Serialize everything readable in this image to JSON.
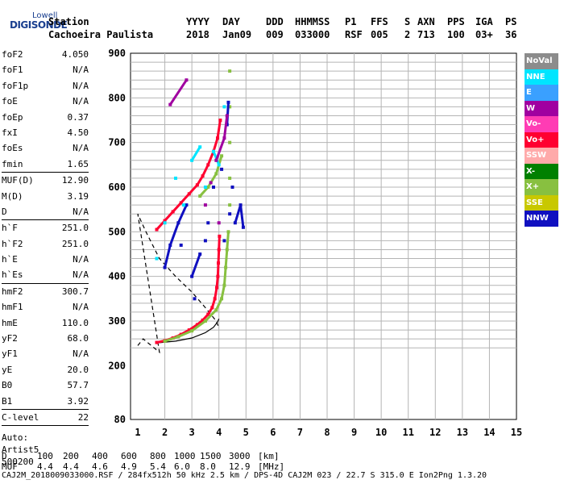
{
  "logo": {
    "top": "Lowell",
    "main": "DIGISONDE"
  },
  "header": {
    "line1": [
      "Station",
      "YYYY",
      "DAY",
      "DDD",
      "HHMMSS",
      "P1",
      "FFS",
      "S",
      "AXN",
      "PPS",
      "IGA",
      "PS"
    ],
    "line2": [
      "Cachoeira Paulista",
      "2018",
      "Jan09",
      "009",
      "033000",
      "RSF",
      "005",
      "2",
      "713",
      "100",
      "03+",
      "36"
    ]
  },
  "params": {
    "groups": [
      [
        {
          "k": "foF2",
          "v": "4.050"
        },
        {
          "k": "foF1",
          "v": "N/A"
        },
        {
          "k": "foF1p",
          "v": "N/A"
        },
        {
          "k": "foE",
          "v": "N/A"
        },
        {
          "k": "foEp",
          "v": "0.37"
        },
        {
          "k": "fxI",
          "v": "4.50"
        },
        {
          "k": "foEs",
          "v": "N/A"
        },
        {
          "k": "fmin",
          "v": "1.65"
        }
      ],
      [
        {
          "k": "MUF(D)",
          "v": "12.90"
        },
        {
          "k": "M(D)",
          "v": "3.19"
        },
        {
          "k": "D",
          "v": "N/A"
        }
      ],
      [
        {
          "k": "h`F",
          "v": "251.0"
        },
        {
          "k": "h`F2",
          "v": "251.0"
        },
        {
          "k": "h`E",
          "v": "N/A"
        },
        {
          "k": "h`Es",
          "v": "N/A"
        }
      ],
      [
        {
          "k": "hmF2",
          "v": "300.7"
        },
        {
          "k": "hmF1",
          "v": "N/A"
        },
        {
          "k": "hmE",
          "v": "110.0"
        },
        {
          "k": "yF2",
          "v": "68.0"
        },
        {
          "k": "yF1",
          "v": "N/A"
        },
        {
          "k": "yE",
          "v": "20.0"
        },
        {
          "k": "B0",
          "v": "57.7"
        },
        {
          "k": "B1",
          "v": "3.92"
        }
      ],
      [
        {
          "k": "C-level",
          "v": "22"
        }
      ]
    ],
    "auto": [
      "Auto:",
      "Artist5",
      "500200"
    ]
  },
  "legend": [
    {
      "label": "NoVal",
      "color": "#8c8c8c"
    },
    {
      "label": "NNE",
      "color": "#00e5ff"
    },
    {
      "label": "E",
      "color": "#3aa0ff"
    },
    {
      "label": "W",
      "color": "#a000a0"
    },
    {
      "label": "Vo-",
      "color": "#ff3cb4"
    },
    {
      "label": "Vo+",
      "color": "#ff0030"
    },
    {
      "label": "SSW",
      "color": "#ffaaaa"
    },
    {
      "label": "X-",
      "color": "#008000"
    },
    {
      "label": "X+",
      "color": "#88c040"
    },
    {
      "label": "SSE",
      "color": "#c8c800"
    },
    {
      "label": "NNW",
      "color": "#1010c0"
    }
  ],
  "muf_table": {
    "d_label": "D",
    "d_values": [
      "100",
      "200",
      "400",
      "600",
      "800",
      "1000",
      "1500",
      "3000"
    ],
    "d_unit": "[km]",
    "muf_label": "MUF",
    "muf_values": [
      "4.4",
      "4.4",
      "4.6",
      "4.9",
      "5.4",
      "6.0",
      "8.0",
      "12.9"
    ],
    "muf_unit": "[MHz]"
  },
  "footer": "CAJ2M_2018009033000.RSF / 284fx512h 50 kHz 2.5 km / DPS-4D CAJ2M 023 / 22.7 S 315.0 E Ion2Png 1.3.20",
  "chart_data": {
    "type": "scatter",
    "title": "",
    "xlabel": "",
    "ylabel": "",
    "xlim": [
      1,
      15
    ],
    "ylim": [
      80,
      900
    ],
    "x_ticks": [
      1,
      2,
      3,
      4,
      5,
      6,
      7,
      8,
      9,
      10,
      11,
      12,
      13,
      14,
      15
    ],
    "y_ticks": [
      80,
      200,
      300,
      400,
      500,
      600,
      700,
      800,
      900
    ],
    "grid": true,
    "legend_placement": "right",
    "series": [
      {
        "name": "Vo+",
        "color": "#ff0030",
        "points": [
          [
            1.7,
            252
          ],
          [
            2.0,
            256
          ],
          [
            2.3,
            262
          ],
          [
            2.6,
            270
          ],
          [
            2.9,
            280
          ],
          [
            3.2,
            292
          ],
          [
            3.4,
            302
          ],
          [
            3.6,
            315
          ],
          [
            3.75,
            330
          ],
          [
            3.85,
            350
          ],
          [
            3.92,
            375
          ],
          [
            3.96,
            400
          ],
          [
            3.98,
            430
          ],
          [
            4.0,
            460
          ],
          [
            4.02,
            490
          ],
          [
            1.7,
            505
          ],
          [
            2.0,
            525
          ],
          [
            2.3,
            545
          ],
          [
            2.6,
            565
          ],
          [
            2.9,
            585
          ],
          [
            3.2,
            605
          ],
          [
            3.4,
            625
          ],
          [
            3.6,
            650
          ],
          [
            3.8,
            680
          ],
          [
            3.95,
            710
          ],
          [
            4.05,
            750
          ]
        ]
      },
      {
        "name": "X+",
        "color": "#88c040",
        "points": [
          [
            2.0,
            255
          ],
          [
            2.5,
            265
          ],
          [
            3.0,
            278
          ],
          [
            3.5,
            300
          ],
          [
            3.9,
            325
          ],
          [
            4.1,
            350
          ],
          [
            4.2,
            380
          ],
          [
            4.25,
            420
          ],
          [
            4.3,
            460
          ],
          [
            4.35,
            500
          ],
          [
            4.4,
            560
          ],
          [
            4.4,
            620
          ],
          [
            4.4,
            700
          ],
          [
            4.4,
            780
          ],
          [
            4.4,
            860
          ],
          [
            3.3,
            580
          ],
          [
            3.6,
            600
          ],
          [
            3.9,
            630
          ],
          [
            4.1,
            670
          ]
        ]
      },
      {
        "name": "NNW",
        "color": "#1010c0",
        "points": [
          [
            2.0,
            420
          ],
          [
            2.2,
            470
          ],
          [
            2.5,
            520
          ],
          [
            2.8,
            560
          ],
          [
            3.0,
            400
          ],
          [
            3.3,
            450
          ],
          [
            3.6,
            520
          ],
          [
            3.8,
            600
          ],
          [
            4.2,
            480
          ],
          [
            4.4,
            540
          ],
          [
            4.5,
            600
          ],
          [
            4.6,
            520
          ],
          [
            4.8,
            560
          ],
          [
            4.9,
            510
          ],
          [
            3.1,
            350
          ],
          [
            2.6,
            470
          ],
          [
            3.5,
            480
          ],
          [
            4.1,
            640
          ],
          [
            4.3,
            740
          ],
          [
            4.35,
            790
          ]
        ]
      },
      {
        "name": "NNE",
        "color": "#00e5ff",
        "points": [
          [
            1.7,
            440
          ],
          [
            2.0,
            520
          ],
          [
            2.4,
            620
          ],
          [
            2.7,
            560
          ],
          [
            3.0,
            660
          ],
          [
            3.3,
            690
          ],
          [
            3.5,
            600
          ],
          [
            3.8,
            680
          ],
          [
            4.0,
            650
          ],
          [
            4.2,
            780
          ]
        ]
      },
      {
        "name": "W",
        "color": "#a000a0",
        "points": [
          [
            2.2,
            785
          ],
          [
            2.8,
            840
          ],
          [
            3.5,
            560
          ],
          [
            3.9,
            660
          ],
          [
            4.2,
            710
          ],
          [
            4.3,
            760
          ],
          [
            4.0,
            520
          ],
          [
            3.7,
            610
          ]
        ]
      }
    ],
    "profile_curves": [
      {
        "style": "solid",
        "points": [
          [
            1.7,
            251
          ],
          [
            2.4,
            255
          ],
          [
            3.0,
            262
          ],
          [
            3.5,
            274
          ],
          [
            3.8,
            286
          ],
          [
            3.95,
            298
          ],
          [
            4.0,
            305
          ]
        ]
      },
      {
        "style": "dashed",
        "points": [
          [
            1.0,
            245
          ],
          [
            1.2,
            260
          ],
          [
            1.8,
            230
          ],
          [
            1.0,
            540
          ],
          [
            1.3,
            500
          ],
          [
            1.8,
            440
          ],
          [
            2.4,
            400
          ],
          [
            3.0,
            365
          ],
          [
            3.5,
            330
          ],
          [
            3.9,
            300
          ],
          [
            4.0,
            285
          ]
        ]
      }
    ]
  }
}
